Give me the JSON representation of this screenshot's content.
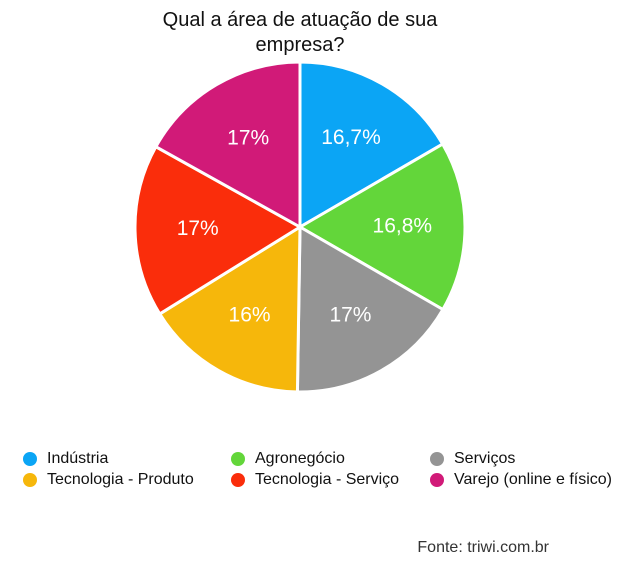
{
  "chart_data": {
    "type": "pie",
    "title": "Qual a área de atuação de sua empresa?",
    "categories": [
      "Indústria",
      "Agronegócio",
      "Serviços",
      "Tecnologia - Produto",
      "Tecnologia - Serviço",
      "Varejo (online e físico)"
    ],
    "values": [
      16.7,
      16.8,
      17,
      16,
      17,
      17
    ],
    "value_labels": [
      "16,7%",
      "16,8%",
      "17%",
      "16%",
      "17%",
      "17%"
    ],
    "colors": [
      "#0ba5f5",
      "#63d63a",
      "#949494",
      "#f6b70b",
      "#fa2d0b",
      "#d11a78"
    ],
    "source": "Fonte: triwi.com.br"
  }
}
